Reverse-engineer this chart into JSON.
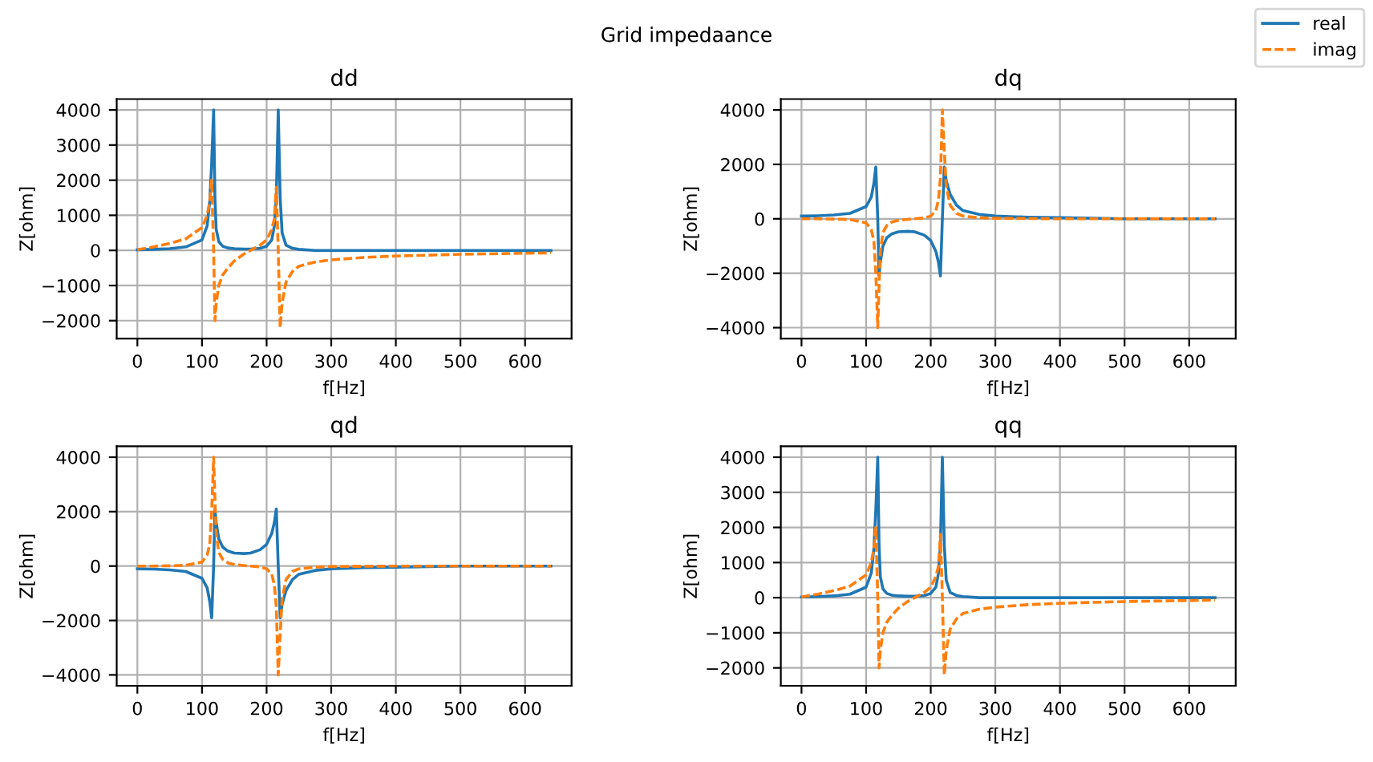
{
  "chart_data": [
    {
      "type": "line",
      "title": "dd",
      "xlabel": "f[Hz]",
      "ylabel": "Z[ohm]",
      "annotations": [
        "Grid impedaance"
      ],
      "legend": "top right",
      "xlim": [
        -32,
        672
      ],
      "xticks": [
        0,
        100,
        200,
        300,
        400,
        500,
        600
      ],
      "ylim": [
        -2510,
        4310
      ],
      "yticks": [
        -2000,
        -1000,
        0,
        1000,
        2000,
        3000,
        4000
      ],
      "grid": true,
      "x": [
        0,
        25,
        50,
        75,
        100,
        108,
        112,
        115,
        118,
        120,
        122,
        126,
        132,
        140,
        150,
        165,
        175,
        190,
        200,
        208,
        212,
        215,
        218,
        221,
        224,
        230,
        240,
        250,
        275,
        300,
        350,
        400,
        500,
        640
      ],
      "series": [
        {
          "name": "real",
          "color": "#1f77b4",
          "line_style": "solid",
          "values": [
            20,
            30,
            50,
            100,
            300,
            700,
            1400,
            2500,
            4000,
            1500,
            600,
            250,
            120,
            70,
            50,
            40,
            40,
            60,
            120,
            300,
            700,
            1500,
            4000,
            1500,
            500,
            150,
            60,
            30,
            0,
            0,
            0,
            0,
            0,
            0
          ]
        },
        {
          "name": "imag",
          "color": "#ff7f0e",
          "line_style": "dashed",
          "values": [
            20,
            100,
            200,
            330,
            650,
            1000,
            1400,
            2000,
            0,
            -2000,
            -1500,
            -1000,
            -700,
            -500,
            -300,
            -100,
            0,
            150,
            300,
            600,
            900,
            1800,
            0,
            -2200,
            -1500,
            -900,
            -600,
            -450,
            -330,
            -270,
            -200,
            -160,
            -110,
            -70
          ]
        }
      ]
    },
    {
      "type": "line",
      "title": "dq",
      "xlabel": "f[Hz]",
      "ylabel": "Z[ohm]",
      "legend": "top right",
      "xlim": [
        -32,
        672
      ],
      "xticks": [
        0,
        100,
        200,
        300,
        400,
        500,
        600
      ],
      "ylim": [
        -4400,
        4400
      ],
      "yticks": [
        -4000,
        -2000,
        0,
        2000,
        4000
      ],
      "grid": true,
      "x": [
        0,
        25,
        50,
        75,
        100,
        108,
        112,
        115,
        118,
        120,
        122,
        126,
        132,
        140,
        150,
        165,
        175,
        190,
        200,
        208,
        212,
        215,
        218,
        221,
        224,
        230,
        240,
        250,
        275,
        300,
        350,
        400,
        500,
        640
      ],
      "series": [
        {
          "name": "real",
          "color": "#1f77b4",
          "line_style": "solid",
          "values": [
            100,
            110,
            140,
            200,
            450,
            800,
            1300,
            1900,
            0,
            -2100,
            -1600,
            -1000,
            -700,
            -550,
            -480,
            -460,
            -480,
            -600,
            -800,
            -1200,
            -1600,
            -2100,
            0,
            1900,
            1400,
            900,
            500,
            300,
            160,
            100,
            60,
            40,
            0,
            0
          ]
        },
        {
          "name": "imag",
          "color": "#ff7f0e",
          "line_style": "dashed",
          "values": [
            0,
            0,
            -10,
            -30,
            -150,
            -400,
            -800,
            -2000,
            -4000,
            -2500,
            -1200,
            -500,
            -250,
            -120,
            -60,
            -20,
            0,
            30,
            100,
            300,
            700,
            1500,
            4000,
            2500,
            1200,
            500,
            200,
            100,
            40,
            20,
            10,
            0,
            0,
            0
          ]
        }
      ]
    },
    {
      "type": "line",
      "title": "qd",
      "xlabel": "f[Hz]",
      "ylabel": "Z[ohm]",
      "legend": "top right",
      "xlim": [
        -32,
        672
      ],
      "xticks": [
        0,
        100,
        200,
        300,
        400,
        500,
        600
      ],
      "ylim": [
        -4400,
        4400
      ],
      "yticks": [
        -4000,
        -2000,
        0,
        2000,
        4000
      ],
      "grid": true,
      "x": [
        0,
        25,
        50,
        75,
        100,
        108,
        112,
        115,
        118,
        120,
        122,
        126,
        132,
        140,
        150,
        165,
        175,
        190,
        200,
        208,
        212,
        215,
        218,
        221,
        224,
        230,
        240,
        250,
        275,
        300,
        350,
        400,
        500,
        640
      ],
      "series": [
        {
          "name": "real",
          "color": "#1f77b4",
          "line_style": "solid",
          "values": [
            -100,
            -110,
            -140,
            -200,
            -450,
            -800,
            -1300,
            -1900,
            0,
            2100,
            1600,
            1000,
            700,
            550,
            480,
            460,
            480,
            600,
            800,
            1200,
            1600,
            2100,
            0,
            -1900,
            -1400,
            -900,
            -500,
            -300,
            -160,
            -100,
            -60,
            -40,
            0,
            0
          ]
        },
        {
          "name": "imag",
          "color": "#ff7f0e",
          "line_style": "dashed",
          "values": [
            0,
            0,
            10,
            30,
            150,
            400,
            800,
            2000,
            4000,
            2500,
            1200,
            500,
            250,
            120,
            60,
            20,
            0,
            -30,
            -100,
            -300,
            -700,
            -1500,
            -4000,
            -2500,
            -1200,
            -500,
            -200,
            -100,
            -40,
            -20,
            -10,
            0,
            0,
            0
          ]
        }
      ]
    },
    {
      "type": "line",
      "title": "qq",
      "xlabel": "f[Hz]",
      "ylabel": "Z[ohm]",
      "legend": "top right",
      "xlim": [
        -32,
        672
      ],
      "xticks": [
        0,
        100,
        200,
        300,
        400,
        500,
        600
      ],
      "ylim": [
        -2510,
        4310
      ],
      "yticks": [
        -2000,
        -1000,
        0,
        1000,
        2000,
        3000,
        4000
      ],
      "grid": true,
      "x": [
        0,
        25,
        50,
        75,
        100,
        108,
        112,
        115,
        118,
        120,
        122,
        126,
        132,
        140,
        150,
        165,
        175,
        190,
        200,
        208,
        212,
        215,
        218,
        221,
        224,
        230,
        240,
        250,
        275,
        300,
        350,
        400,
        500,
        640
      ],
      "series": [
        {
          "name": "real",
          "color": "#1f77b4",
          "line_style": "solid",
          "values": [
            20,
            30,
            50,
            100,
            300,
            700,
            1400,
            2500,
            4000,
            1500,
            600,
            250,
            120,
            70,
            50,
            40,
            40,
            60,
            120,
            300,
            700,
            1500,
            4000,
            1500,
            500,
            150,
            60,
            30,
            0,
            0,
            0,
            0,
            0,
            0
          ]
        },
        {
          "name": "imag",
          "color": "#ff7f0e",
          "line_style": "dashed",
          "values": [
            20,
            100,
            200,
            330,
            650,
            1000,
            1400,
            2000,
            0,
            -2000,
            -1500,
            -1000,
            -700,
            -500,
            -300,
            -100,
            0,
            150,
            300,
            600,
            900,
            1800,
            0,
            -2200,
            -1500,
            -900,
            -600,
            -450,
            -330,
            -270,
            -200,
            -160,
            -110,
            -70
          ]
        }
      ]
    }
  ]
}
